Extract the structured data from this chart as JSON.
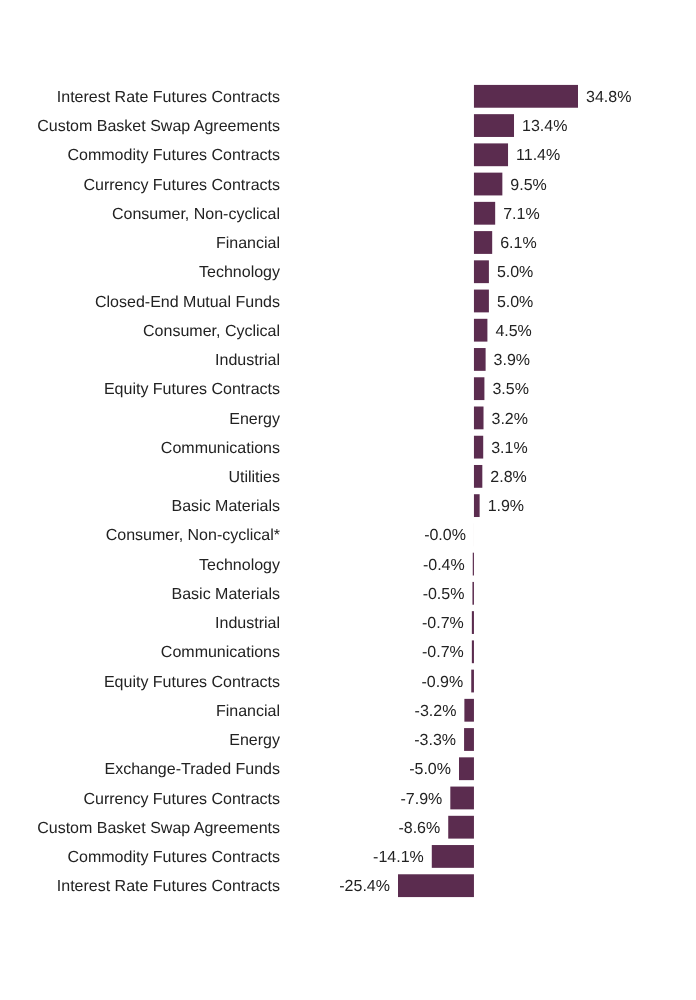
{
  "chart_data": {
    "type": "bar",
    "orientation": "horizontal",
    "categories": [
      "Interest Rate Futures Contracts",
      "Custom Basket Swap Agreements",
      "Commodity Futures Contracts",
      "Currency Futures Contracts",
      "Consumer, Non-cyclical",
      "Financial",
      "Technology",
      "Closed-End Mutual Funds",
      "Consumer, Cyclical",
      "Industrial",
      "Equity Futures Contracts",
      "Energy",
      "Communications",
      "Utilities",
      "Basic Materials",
      "Consumer, Non-cyclical*",
      "Technology",
      "Basic Materials",
      "Industrial",
      "Communications",
      "Equity Futures Contracts",
      "Financial",
      "Energy",
      "Exchange-Traded Funds",
      "Currency Futures Contracts",
      "Custom Basket Swap Agreements",
      "Commodity Futures Contracts",
      "Interest Rate Futures Contracts"
    ],
    "values": [
      34.8,
      13.4,
      11.4,
      9.5,
      7.1,
      6.1,
      5.0,
      5.0,
      4.5,
      3.9,
      3.5,
      3.2,
      3.1,
      2.8,
      1.9,
      -0.0,
      -0.4,
      -0.5,
      -0.7,
      -0.7,
      -0.9,
      -3.2,
      -3.3,
      -5.0,
      -7.9,
      -8.6,
      -14.1,
      -25.4
    ],
    "value_labels": [
      "34.8%",
      "13.4%",
      "11.4%",
      "9.5%",
      "7.1%",
      "6.1%",
      "5.0%",
      "5.0%",
      "4.5%",
      "3.9%",
      "3.5%",
      "3.2%",
      "3.1%",
      "2.8%",
      "1.9%",
      "-0.0%",
      "-0.4%",
      "-0.5%",
      "-0.7%",
      "-0.7%",
      "-0.9%",
      "-3.2%",
      "-3.3%",
      "-5.0%",
      "-7.9%",
      "-8.6%",
      "-14.1%",
      "-25.4%"
    ],
    "color": "#5b2c4f"
  }
}
